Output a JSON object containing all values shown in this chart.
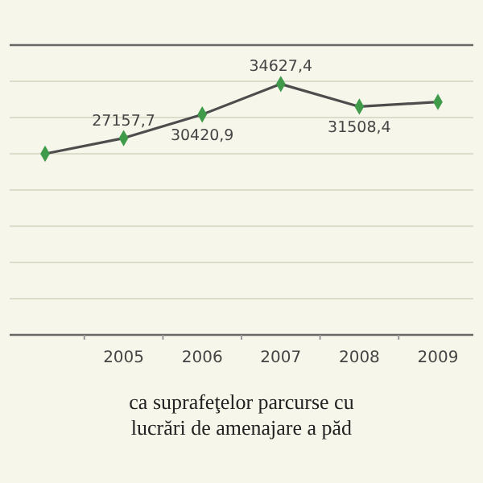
{
  "chart_data": {
    "type": "line",
    "title": "ca suprafeţelor parcurse cu lucrări de amenajare a păd",
    "categories": [
      null,
      "2005",
      "2006",
      "2007",
      "2008",
      "2009"
    ],
    "series": [
      {
        "color": "#4d4d4d",
        "values": [
          25000,
          27157.7,
          30420.9,
          34627.4,
          31508.4,
          32150
        ],
        "value_labels": [
          null,
          "27157,7",
          "30420,9",
          "34627,4",
          "31508,4",
          null
        ]
      }
    ],
    "ylim": [
      0,
      40000
    ],
    "yticks": [
      {
        "value": 0,
        "label": null
      },
      {
        "value": 5000,
        "label": null
      },
      {
        "value": 10000,
        "label": null
      },
      {
        "value": 15000,
        "label": null
      },
      {
        "value": 20000,
        "label": null
      },
      {
        "value": 25000,
        "label": null
      },
      {
        "value": 30000,
        "label": null
      },
      {
        "value": 35000,
        "label": null
      },
      {
        "value": 40000,
        "label": null
      }
    ],
    "grid": "y",
    "marker": "diamond"
  }
}
